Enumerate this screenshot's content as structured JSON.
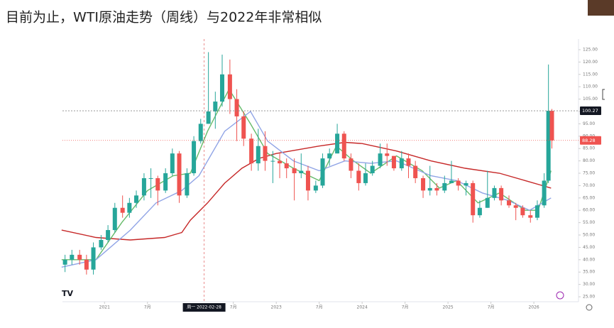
{
  "chart_data": {
    "type": "candlestick",
    "title": "目前为止，WTI原油走势（周线）与2022年非常相似",
    "x": [
      2020.54,
      2020.62,
      2020.71,
      2020.79,
      2020.87,
      2020.96,
      2021.04,
      2021.12,
      2021.21,
      2021.29,
      2021.37,
      2021.46,
      2021.54,
      2021.62,
      2021.71,
      2021.79,
      2021.87,
      2021.96,
      2022.04,
      2022.12,
      2022.21,
      2022.29,
      2022.37,
      2022.46,
      2022.54,
      2022.62,
      2022.71,
      2022.79,
      2022.87,
      2022.96,
      2023.04,
      2023.12,
      2023.21,
      2023.29,
      2023.37,
      2023.46,
      2023.54,
      2023.62,
      2023.71,
      2023.79,
      2023.87,
      2023.96,
      2024.04,
      2024.12,
      2024.21,
      2024.29,
      2024.37,
      2024.46,
      2024.54,
      2024.62,
      2024.71,
      2024.79,
      2024.87,
      2024.96,
      2025.04,
      2025.12,
      2025.21,
      2025.29,
      2025.37,
      2025.46,
      2025.54,
      2025.62,
      2025.71,
      2025.79,
      2025.87,
      2025.96,
      2026.04,
      2026.12,
      2026.17,
      2026.21
    ],
    "open": [
      38,
      40,
      42,
      40,
      36,
      45,
      48,
      52,
      61,
      59,
      63,
      66,
      73,
      73,
      68,
      75,
      83,
      66,
      75,
      88,
      95,
      100,
      104,
      115,
      105,
      98,
      89,
      79,
      86,
      80,
      80,
      79,
      77,
      75,
      76,
      68,
      70,
      81,
      83,
      91,
      81,
      76,
      71,
      75,
      78,
      83,
      82,
      77,
      81,
      78,
      73,
      68,
      69,
      68,
      71,
      72,
      70,
      71,
      58,
      61,
      65,
      69,
      64,
      62,
      61,
      58,
      57,
      62,
      72,
      100.27
    ],
    "high": [
      42,
      44,
      44,
      42,
      47,
      50,
      54,
      63,
      66,
      65,
      68,
      75,
      77,
      74,
      77,
      85,
      84,
      77,
      90,
      97,
      124,
      108,
      123,
      121,
      109,
      100,
      91,
      93,
      92,
      84,
      83,
      81,
      81,
      83,
      78,
      72,
      83,
      85,
      95,
      92,
      83,
      79,
      79,
      80,
      87,
      87,
      82,
      84,
      83,
      80,
      74,
      78,
      71,
      74,
      80,
      73,
      72,
      72,
      64,
      76,
      70,
      70,
      66,
      63,
      62,
      60,
      64,
      75,
      119,
      101
    ],
    "low": [
      35,
      38,
      38,
      34,
      34,
      44,
      47,
      51,
      57,
      57,
      61,
      64,
      65,
      62,
      67,
      74,
      63,
      65,
      74,
      87,
      95,
      93,
      102,
      99,
      88,
      86,
      76,
      76,
      76,
      71,
      73,
      73,
      64,
      73,
      64,
      67,
      69,
      78,
      83,
      80,
      73,
      68,
      70,
      74,
      77,
      78,
      76,
      76,
      73,
      71,
      65,
      66,
      66,
      67,
      71,
      68,
      66,
      55,
      57,
      61,
      64,
      62,
      61,
      56,
      57,
      55,
      56,
      61,
      71,
      85
    ],
    "close": [
      40,
      42,
      40,
      36,
      45,
      48,
      52,
      61,
      59,
      63,
      66,
      73,
      73,
      68,
      75,
      83,
      66,
      75,
      88,
      95,
      100,
      104,
      115,
      105,
      98,
      89,
      79,
      86,
      80,
      80,
      79,
      77,
      75,
      76,
      68,
      70,
      81,
      83,
      91,
      81,
      76,
      71,
      75,
      78,
      83,
      82,
      77,
      81,
      78,
      73,
      68,
      69,
      68,
      71,
      72,
      70,
      71,
      58,
      61,
      65,
      69,
      64,
      62,
      61,
      58,
      57,
      62,
      72,
      100.27,
      88.28
    ],
    "up_color": "#26a69a",
    "down_color": "#ef5350",
    "lines": [
      {
        "color": "#c62828",
        "x": [
          2020.5,
          2020.9,
          2021.3,
          2021.7,
          2021.9,
          2022.0,
          2022.2,
          2022.4,
          2022.6,
          2022.8,
          2023.0,
          2023.5,
          2023.8,
          2024.0,
          2024.4,
          2024.8,
          2025.2,
          2025.6,
          2025.9,
          2026.2
        ],
        "values": [
          52,
          49,
          48,
          49,
          51,
          56,
          63,
          71,
          77,
          81,
          83,
          86,
          87.5,
          87,
          84,
          80,
          77,
          75,
          72,
          69
        ]
      },
      {
        "color": "#66bb6a",
        "x": [
          2020.5,
          2020.9,
          2021.2,
          2021.5,
          2021.8,
          2022.0,
          2022.2,
          2022.45,
          2022.7,
          2022.9,
          2023.2,
          2023.5,
          2023.7,
          2023.9,
          2024.1,
          2024.4,
          2024.7,
          2024.9,
          2025.1,
          2025.35,
          2025.6,
          2025.9,
          2026.05,
          2026.2
        ],
        "values": [
          40,
          40,
          55,
          68,
          74,
          75,
          92,
          109,
          95,
          83,
          77,
          72,
          86,
          80,
          75,
          82,
          76,
          69,
          72,
          63,
          67,
          60,
          60,
          76
        ]
      },
      {
        "color": "#90a4e6",
        "x": [
          2020.5,
          2020.9,
          2021.3,
          2021.6,
          2021.9,
          2022.1,
          2022.4,
          2022.7,
          2022.9,
          2023.2,
          2023.5,
          2023.8,
          2024.1,
          2024.4,
          2024.8,
          2025.1,
          2025.4,
          2025.7,
          2025.95,
          2026.2
        ],
        "values": [
          37,
          40,
          52,
          63,
          68,
          74,
          92,
          100,
          88,
          80,
          76,
          80,
          79,
          80,
          74,
          72,
          67,
          64,
          60,
          65
        ]
      }
    ],
    "xlim": [
      2020.51,
      2026.52
    ],
    "ylim": [
      23,
      129.3
    ],
    "xticks": [
      {
        "value": 2021,
        "label": "2021"
      },
      {
        "value": 2021.5,
        "label": "7月"
      },
      {
        "value": 2022.5,
        "label": "7月"
      },
      {
        "value": 2023,
        "label": "2023"
      },
      {
        "value": 2023.5,
        "label": "7月"
      },
      {
        "value": 2024,
        "label": "2024"
      },
      {
        "value": 2024.5,
        "label": "7月"
      },
      {
        "value": 2025,
        "label": "2025"
      },
      {
        "value": 2025.5,
        "label": "7月"
      },
      {
        "value": 2026,
        "label": "2026"
      }
    ],
    "yticks": [
      {
        "value": 25,
        "label": "25.00"
      },
      {
        "value": 30,
        "label": "30.00"
      },
      {
        "value": 35,
        "label": "35.00"
      },
      {
        "value": 40,
        "label": "40.00"
      },
      {
        "value": 45,
        "label": "45.00"
      },
      {
        "value": 50,
        "label": "50.00"
      },
      {
        "value": 55,
        "label": "55.00"
      },
      {
        "value": 60,
        "label": "60.00"
      },
      {
        "value": 65,
        "label": "65.00"
      },
      {
        "value": 70,
        "label": "70.00"
      },
      {
        "value": 75,
        "label": "75.00"
      },
      {
        "value": 80,
        "label": "80.00"
      },
      {
        "value": 85,
        "label": "85.00"
      },
      {
        "value": 90,
        "label": "90.00"
      },
      {
        "value": 95,
        "label": "95.00"
      },
      {
        "value": 100,
        "label": "100.00"
      },
      {
        "value": 105,
        "label": "105.00"
      },
      {
        "value": 110,
        "label": "110.00"
      },
      {
        "value": 115,
        "label": "115.00"
      },
      {
        "value": 120,
        "label": "120.00"
      },
      {
        "value": 125,
        "label": "125.00"
      }
    ],
    "crosshair": {
      "x": 2022.16,
      "x_label": "周一 2022-02-28",
      "y": 100.27
    }
  }
}
